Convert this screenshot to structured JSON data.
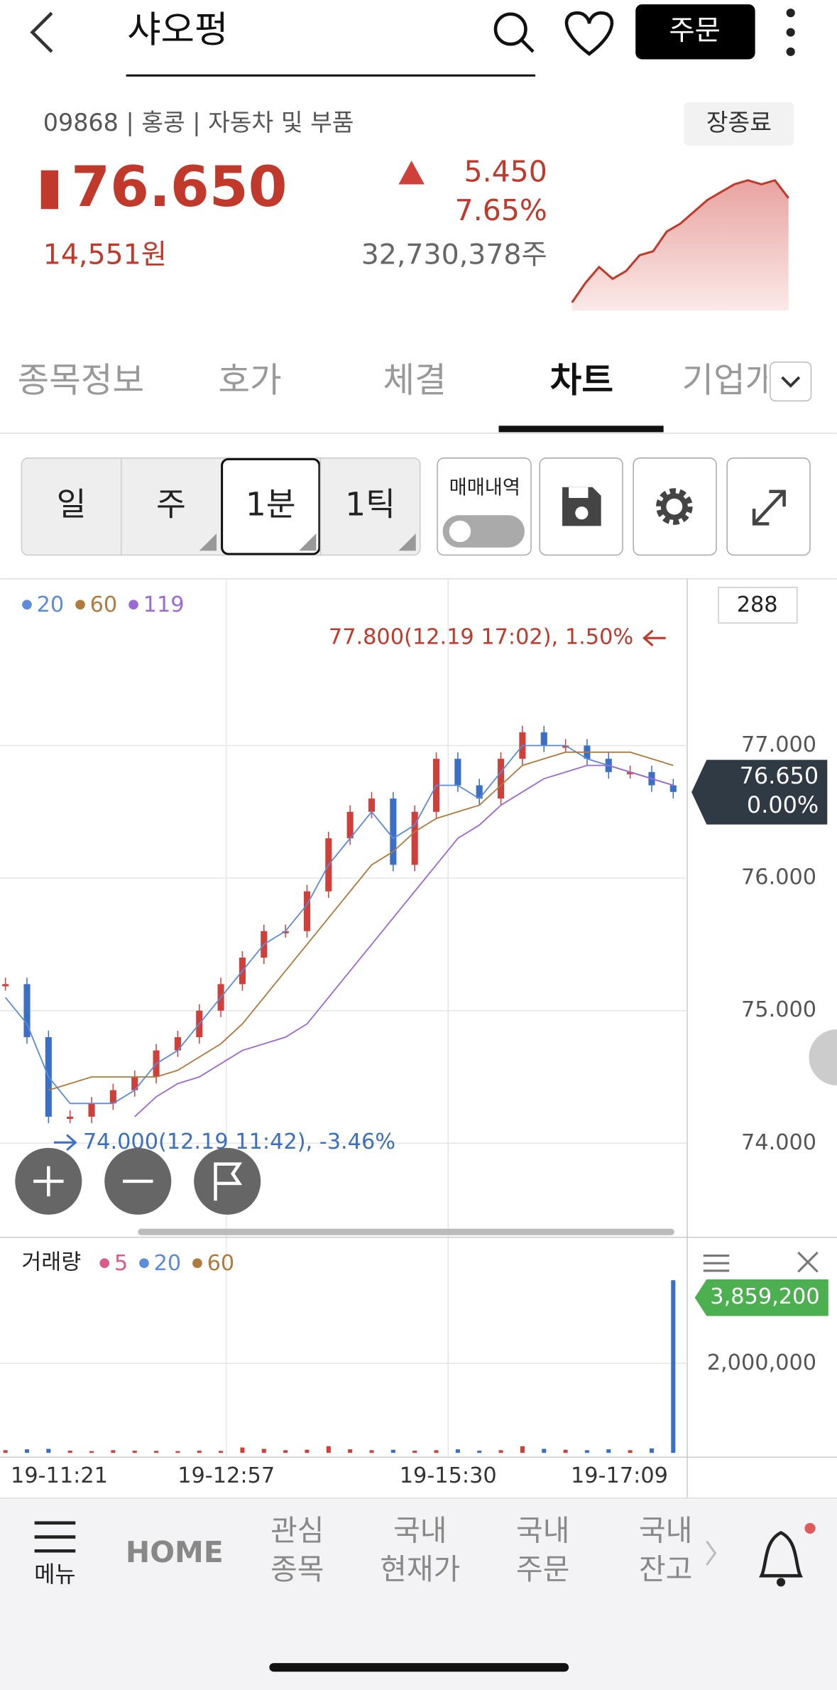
{
  "header": {
    "title": "샤오펑",
    "order_button": "주문"
  },
  "stock": {
    "info": "09868 | 홍콩 | 자동차 및 부품",
    "status_badge": "장종료",
    "price": "76.650",
    "price_krw": "14,551원",
    "change": "5.450",
    "change_pct": "7.65%",
    "volume": "32,730,378주",
    "sparkline": {
      "values": [
        74.0,
        74.5,
        74.9,
        74.6,
        74.8,
        75.2,
        75.3,
        75.8,
        76.0,
        76.3,
        76.6,
        76.8,
        77.0,
        77.1,
        77.0,
        77.1,
        76.65
      ],
      "ylim": [
        73.8,
        77.3
      ],
      "color": "#c0392b"
    }
  },
  "tabs": {
    "items": [
      "종목정보",
      "호가",
      "체결",
      "차트",
      "기업개요"
    ],
    "selected": 3
  },
  "periods": {
    "items": [
      "일",
      "주",
      "1분",
      "1틱"
    ],
    "selected": 2,
    "trade_history": "매매내역"
  },
  "chart": {
    "price_color": "#c0392b",
    "up_color": "#d0403a",
    "down_color": "#3a6fc4",
    "count": "288",
    "ma": [
      {
        "name": "20",
        "color": "#5b8bd9"
      },
      {
        "name": "60",
        "color": "#b07a3c"
      },
      {
        "name": "119",
        "color": "#9b6ad6"
      }
    ],
    "max_label": "77.800(12.19 17:02), 1.50%",
    "min_label": "74.000(12.19 11:42), -3.46%",
    "ylim": [
      73.29,
      78.25
    ],
    "yticks": [
      {
        "value": 77,
        "label": "77.000"
      },
      {
        "value": 76,
        "label": "76.000"
      },
      {
        "value": 75,
        "label": "75.000"
      },
      {
        "value": 74,
        "label": "74.000"
      }
    ],
    "current": {
      "value": 76.65,
      "label": "76.650",
      "change": "0.00%"
    },
    "close": [
      75.2,
      74.8,
      74.2,
      74.2,
      74.3,
      74.4,
      74.5,
      74.7,
      74.8,
      75.0,
      75.2,
      75.4,
      75.6,
      75.6,
      75.9,
      76.3,
      76.5,
      76.6,
      76.1,
      76.5,
      76.9,
      76.7,
      76.6,
      76.9,
      77.1,
      77.0,
      77.0,
      76.9,
      76.8,
      76.8,
      76.7,
      76.65
    ],
    "series": [
      {
        "name": "20",
        "color": "#5b8bd9",
        "values": [
          75.1,
          74.9,
          74.5,
          74.3,
          74.3,
          74.3,
          74.4,
          74.6,
          74.7,
          74.9,
          75.1,
          75.3,
          75.5,
          75.6,
          75.8,
          76.1,
          76.3,
          76.5,
          76.3,
          76.4,
          76.7,
          76.7,
          76.6,
          76.8,
          77.0,
          77.0,
          77.0,
          76.9,
          76.85,
          76.8,
          76.75,
          76.7
        ]
      },
      {
        "name": "60",
        "color": "#b07a3c",
        "values": [
          null,
          null,
          74.4,
          74.45,
          74.5,
          74.5,
          74.5,
          74.5,
          74.55,
          74.65,
          74.75,
          74.9,
          75.1,
          75.3,
          75.5,
          75.7,
          75.9,
          76.1,
          76.2,
          76.35,
          76.45,
          76.5,
          76.55,
          76.7,
          76.85,
          76.9,
          76.95,
          76.95,
          76.95,
          76.95,
          76.9,
          76.85
        ]
      },
      {
        "name": "119",
        "color": "#9b6ad6",
        "values": [
          null,
          null,
          null,
          null,
          null,
          null,
          74.2,
          74.35,
          74.45,
          74.5,
          74.6,
          74.7,
          74.75,
          74.8,
          74.9,
          75.1,
          75.3,
          75.5,
          75.7,
          75.9,
          76.1,
          76.3,
          76.4,
          76.55,
          76.65,
          76.75,
          76.8,
          76.85,
          76.85,
          76.8,
          76.75,
          76.7
        ]
      }
    ],
    "x_labels": [
      "19-11:21",
      "19-12:57",
      "19-15:30",
      "19-17:09"
    ]
  },
  "volume": {
    "title": "거래량",
    "ma": [
      {
        "name": "5",
        "color": "#d95b8b"
      },
      {
        "name": "20",
        "color": "#5b8bd9"
      },
      {
        "name": "60",
        "color": "#b07a3c"
      }
    ],
    "ylim": [
      0,
      4770000
    ],
    "yticks": [
      {
        "value": 2000000,
        "label": "2,000,000"
      }
    ],
    "current": {
      "value": 3859200,
      "label": "3,859,200"
    },
    "values": [
      60000,
      80000,
      90000,
      50000,
      40000,
      60000,
      50000,
      45000,
      40000,
      50000,
      45000,
      120000,
      90000,
      60000,
      70000,
      150000,
      80000,
      60000,
      70000,
      50000,
      60000,
      80000,
      50000,
      60000,
      150000,
      90000,
      70000,
      60000,
      80000,
      60000,
      100000,
      3859200
    ]
  },
  "nav": {
    "menu": "메뉴",
    "home": "HOME",
    "items": [
      [
        "관심",
        "종목"
      ],
      [
        "국내",
        "현재가"
      ],
      [
        "국내",
        "주문"
      ],
      [
        "국내",
        "잔고"
      ]
    ]
  }
}
